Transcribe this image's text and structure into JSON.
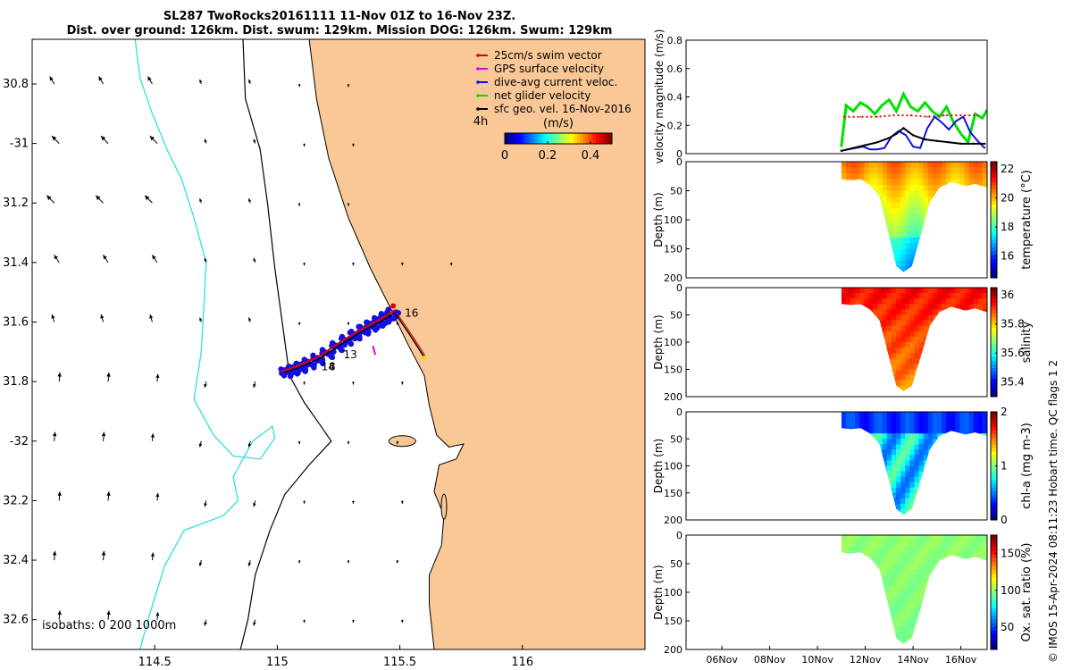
{
  "title": {
    "line1": "SL287 TwoRocks20161111 11-Nov 01Z to 16-Nov 23Z.",
    "line2": "Dist. over ground: 126km. Dist. swum: 129km. Mission DOG: 126km. Swum: 129km"
  },
  "credit": "© IMOS 15-Apr-2024 08:11:23 Hobart time. QC flags 1  2",
  "colors": {
    "land": "#f9c896",
    "isobath200": "#40e0e0",
    "swim": "#e00000",
    "gps": "#e000e0",
    "diveavg": "#1010e0",
    "net": "#00e000",
    "geo": "#000000"
  },
  "chart_data": [
    {
      "type": "map",
      "name": "track-map",
      "xlim": [
        114.0,
        116.5
      ],
      "ylim": [
        -32.7,
        -30.65
      ],
      "xticks": [
        114.5,
        115,
        115.5,
        116
      ],
      "xtick_labels": [
        "114.5",
        "115",
        "115.5",
        "116"
      ],
      "yticks": [
        -30.8,
        -31,
        -31.2,
        -31.4,
        -31.6,
        -31.8,
        -32,
        -32.2,
        -32.4,
        -32.6
      ],
      "ytick_labels": [
        "30.8",
        "-31",
        "31.2",
        "31.4",
        "31.6",
        "31.8",
        "-32",
        "32.2",
        "32.4",
        "32.6"
      ],
      "legend": {
        "position": "top-right",
        "items": [
          {
            "label": "25cm/s swim vector",
            "color": "#e00000"
          },
          {
            "label": "GPS surface velocity",
            "color": "#e000e0"
          },
          {
            "label": "dive-avg current veloc.",
            "color": "#1010e0"
          },
          {
            "label": "net glider velocity",
            "color": "#00e000"
          },
          {
            "label": "sfc geo. vel. 16-Nov-2016",
            "color": "#000000"
          }
        ]
      },
      "speed_colorbar": {
        "title": "(m/s)",
        "prefix": "4h",
        "ticks": [
          0,
          0.2,
          0.4
        ],
        "tick_labels": [
          "0",
          "0.2",
          "0.4"
        ],
        "range": [
          0,
          0.5
        ]
      },
      "isobath_label": "isobaths: 0   200  1000m",
      "track_labels": [
        {
          "text": "16",
          "lon": 115.52,
          "lat": -31.57
        },
        {
          "text": "13",
          "lon": 115.27,
          "lat": -31.71
        },
        {
          "text": "14",
          "lon": 115.18,
          "lat": -31.75
        },
        {
          "text": "8",
          "lon": 115.21,
          "lat": -31.75
        }
      ],
      "track": [
        [
          115.48,
          -31.57
        ],
        [
          115.42,
          -31.6
        ],
        [
          115.35,
          -31.63
        ],
        [
          115.27,
          -31.67
        ],
        [
          115.18,
          -31.72
        ],
        [
          115.1,
          -31.75
        ],
        [
          115.03,
          -31.77
        ]
      ],
      "return_leg": [
        [
          115.48,
          -31.57
        ],
        [
          115.53,
          -31.63
        ],
        [
          115.57,
          -31.68
        ],
        [
          115.6,
          -31.72
        ]
      ]
    },
    {
      "type": "line",
      "name": "velocity-panel",
      "ylabel": "velocity magnitude (m/s)",
      "ylim": [
        0,
        0.8
      ],
      "yticks": [
        0,
        0.2,
        0.4,
        0.6,
        0.8
      ],
      "ytick_labels": [
        "0",
        "0.2",
        "0.4",
        "0.6",
        "0.8"
      ],
      "xlim": [
        4.5,
        17.1
      ],
      "series": [
        {
          "name": "net glider velocity",
          "color": "#00e000",
          "x": [
            11.0,
            11.2,
            11.5,
            11.8,
            12.1,
            12.4,
            12.7,
            13.0,
            13.3,
            13.6,
            13.9,
            14.2,
            14.5,
            14.8,
            15.1,
            15.4,
            15.7,
            16.0,
            16.3,
            16.6,
            16.9,
            17.1
          ],
          "values": [
            0.05,
            0.34,
            0.3,
            0.36,
            0.33,
            0.28,
            0.34,
            0.38,
            0.3,
            0.42,
            0.33,
            0.3,
            0.36,
            0.3,
            0.26,
            0.33,
            0.22,
            0.14,
            0.08,
            0.28,
            0.25,
            0.31
          ]
        },
        {
          "name": "swim vector",
          "color": "#e00000",
          "x": [
            11.1,
            11.8,
            12.5,
            13.2,
            13.9,
            14.6,
            15.3,
            16.0,
            16.7
          ],
          "values": [
            0.26,
            0.26,
            0.26,
            0.27,
            0.27,
            0.26,
            0.27,
            0.27,
            0.27
          ]
        },
        {
          "name": "dive-avg current veloc.",
          "color": "#1010e0",
          "x": [
            11.0,
            11.3,
            11.6,
            11.9,
            12.2,
            12.5,
            12.8,
            13.1,
            13.4,
            13.7,
            14.0,
            14.3,
            14.6,
            14.9,
            15.2,
            15.5,
            15.8,
            16.1,
            16.4,
            16.7,
            17.0
          ],
          "values": [
            0.02,
            0.03,
            0.04,
            0.05,
            0.03,
            0.03,
            0.04,
            0.12,
            0.16,
            0.13,
            0.05,
            0.04,
            0.18,
            0.26,
            0.22,
            0.17,
            0.23,
            0.26,
            0.15,
            0.09,
            0.04
          ]
        },
        {
          "name": "sfc geo. vel.",
          "color": "#000000",
          "x": [
            11.0,
            11.5,
            12.0,
            12.5,
            13.0,
            13.3,
            13.6,
            14.0,
            14.5,
            15.0,
            15.5,
            16.0,
            16.5,
            17.0
          ],
          "values": [
            0.02,
            0.04,
            0.06,
            0.08,
            0.11,
            0.14,
            0.18,
            0.13,
            0.1,
            0.09,
            0.08,
            0.07,
            0.07,
            0.07
          ]
        }
      ]
    },
    {
      "type": "heatmap",
      "name": "temperature-section",
      "ylabel": "Depth (m)",
      "ylim": [
        200,
        0
      ],
      "yticks": [
        0,
        50,
        100,
        150,
        200
      ],
      "ytick_labels": [
        "0",
        "50",
        "100",
        "150",
        "200"
      ],
      "colorbar_label": "temperature (°C)",
      "clim": [
        14.5,
        22.5
      ],
      "cticks": [
        16,
        18,
        20,
        22
      ],
      "ctick_labels": [
        "16",
        "18",
        "20",
        "22"
      ],
      "surface_value": 20.5,
      "deep_value": 17.2
    },
    {
      "type": "heatmap",
      "name": "salinity-section",
      "ylabel": "Depth (m)",
      "ylim": [
        200,
        0
      ],
      "yticks": [
        0,
        50,
        100,
        150,
        200
      ],
      "ytick_labels": [
        "0",
        "50",
        "100",
        "150",
        "200"
      ],
      "colorbar_label": "salinity",
      "clim": [
        35.3,
        36.05
      ],
      "cticks": [
        35.4,
        35.6,
        35.8,
        36
      ],
      "ctick_labels": [
        "35.4",
        "35.6",
        "35.8",
        "36"
      ],
      "surface_value": 35.95,
      "deep_value": 35.85
    },
    {
      "type": "heatmap",
      "name": "chla-section",
      "ylabel": "Depth (m)",
      "ylim": [
        200,
        0
      ],
      "yticks": [
        0,
        50,
        100,
        150,
        200
      ],
      "ytick_labels": [
        "0",
        "50",
        "100",
        "150",
        "200"
      ],
      "colorbar_label": "chl-a (mg m-3)",
      "clim": [
        0,
        2
      ],
      "cticks": [
        0,
        1,
        2
      ],
      "ctick_labels": [
        "0",
        "1",
        "2"
      ],
      "surface_value": 0.4,
      "deep_value": 0.9
    },
    {
      "type": "heatmap",
      "name": "oxygen-section",
      "ylabel": "Depth (m)",
      "ylim": [
        200,
        0
      ],
      "yticks": [
        0,
        50,
        100,
        150,
        200
      ],
      "ytick_labels": [
        "0",
        "50",
        "100",
        "150",
        "200"
      ],
      "colorbar_label": "Ox. sat. ratio (%)",
      "clim": [
        20,
        175
      ],
      "cticks": [
        50,
        100,
        150
      ],
      "ctick_labels": [
        "50",
        "100",
        "150"
      ],
      "surface_value": 100,
      "deep_value": 97,
      "xlim": [
        4.5,
        17.1
      ],
      "xticks": [
        6,
        8,
        10,
        12,
        14,
        16
      ],
      "xtick_labels": [
        "06Nov",
        "08Nov",
        "10Nov",
        "12Nov",
        "14Nov",
        "16Nov"
      ]
    }
  ]
}
